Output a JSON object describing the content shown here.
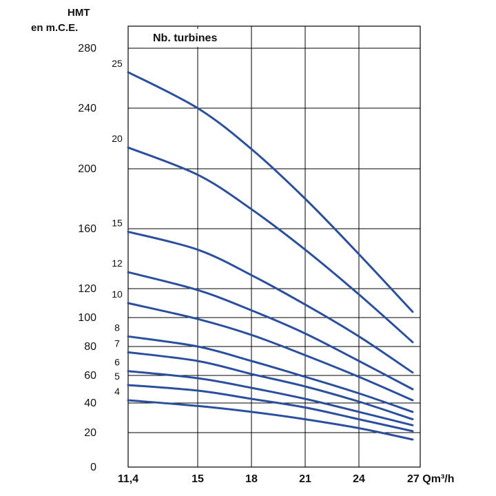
{
  "chart_data": {
    "type": "line",
    "title": "",
    "legend_title": "Nb. turbines",
    "ylabel_line1": "HMT",
    "ylabel_line2": "en m.C.E.",
    "xunit_tick": "27 Qm³/h",
    "xlabel": "Qm³/h",
    "xlim": [
      11.4,
      27
    ],
    "ylim": [
      0,
      280
    ],
    "grid": true,
    "x_ticks": [
      {
        "value": 11.4,
        "label": "11,4"
      },
      {
        "value": 15,
        "label": "15"
      },
      {
        "value": 18,
        "label": "18"
      },
      {
        "value": 21,
        "label": "21"
      },
      {
        "value": 24,
        "label": "24"
      },
      {
        "value": 27,
        "label": "27 Qm³/h"
      }
    ],
    "y_ticks": [
      {
        "value": 0,
        "label": "0",
        "labelY": 0
      },
      {
        "value": 20,
        "label": "20",
        "labelY": 20
      },
      {
        "value": 40,
        "label": "40",
        "labelY": 40
      },
      {
        "value": 60,
        "label": "60",
        "labelY": 60
      },
      {
        "value": 80,
        "label": "80",
        "labelY": 80
      },
      {
        "value": 100,
        "label": "100",
        "labelY": 100
      },
      {
        "value": 120,
        "label": "120",
        "labelY": 120
      },
      {
        "value": 160,
        "label": "160",
        "labelY": 160
      },
      {
        "value": 200,
        "label": "200",
        "labelY": 200
      },
      {
        "value": 240,
        "label": "240",
        "labelY": 240
      },
      {
        "value": 280,
        "label": "280",
        "labelY": 280
      }
    ],
    "line_color": "#2a4f9e",
    "x": [
      11.4,
      15,
      18,
      21,
      24,
      27
    ],
    "series": [
      {
        "name": "25",
        "values": [
          264,
          240,
          213,
          180,
          143,
          104
        ]
      },
      {
        "name": "20",
        "values": [
          214,
          196,
          173,
          146,
          116,
          83
        ]
      },
      {
        "name": "15",
        "values": [
          158,
          146,
          129,
          109,
          87,
          62
        ]
      },
      {
        "name": "12",
        "values": [
          131,
          119,
          105,
          89,
          70,
          50
        ]
      },
      {
        "name": "10",
        "values": [
          110,
          99,
          88,
          74,
          59,
          42
        ]
      },
      {
        "name": "8",
        "values": [
          87,
          80,
          70,
          59,
          47,
          34
        ]
      },
      {
        "name": "7",
        "values": [
          76,
          70,
          61,
          52,
          41,
          29
        ]
      },
      {
        "name": "6",
        "values": [
          63,
          58,
          51,
          43,
          34,
          25
        ]
      },
      {
        "name": "5",
        "values": [
          53,
          49,
          43,
          37,
          29,
          21
        ]
      },
      {
        "name": "4",
        "values": [
          42,
          38,
          34,
          29,
          23,
          16
        ]
      }
    ]
  }
}
